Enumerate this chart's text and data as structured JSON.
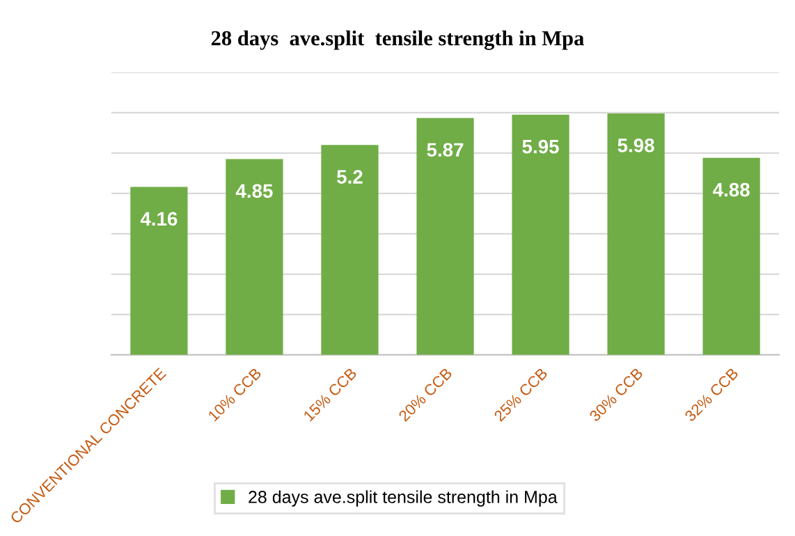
{
  "chart_data": {
    "type": "bar",
    "title": "28 days  ave.split  tensile strength in Mpa",
    "categories": [
      "CONVENTIONAL CONCRETE",
      "10% CCB",
      "15% CCB",
      "20% CCB",
      "25% CCB",
      "30% CCB",
      "32% CCB"
    ],
    "series": [
      {
        "name": "28 days ave.split tensile strength in Mpa",
        "color": "#70ad47",
        "values": [
          4.16,
          4.85,
          5.2,
          5.87,
          5.95,
          5.98,
          4.88
        ]
      }
    ],
    "ylim": [
      0,
      7
    ],
    "yticks": [
      {
        "value": 0,
        "label": null
      },
      {
        "value": 1,
        "label": null
      },
      {
        "value": 2,
        "label": null
      },
      {
        "value": 3,
        "label": null
      },
      {
        "value": 4,
        "label": null
      },
      {
        "value": 5,
        "label": null
      },
      {
        "value": 6,
        "label": null
      },
      {
        "value": 7,
        "label": null
      }
    ],
    "tick_labels": "x",
    "grid": "y",
    "legend": "bottom",
    "data_labels": true
  }
}
